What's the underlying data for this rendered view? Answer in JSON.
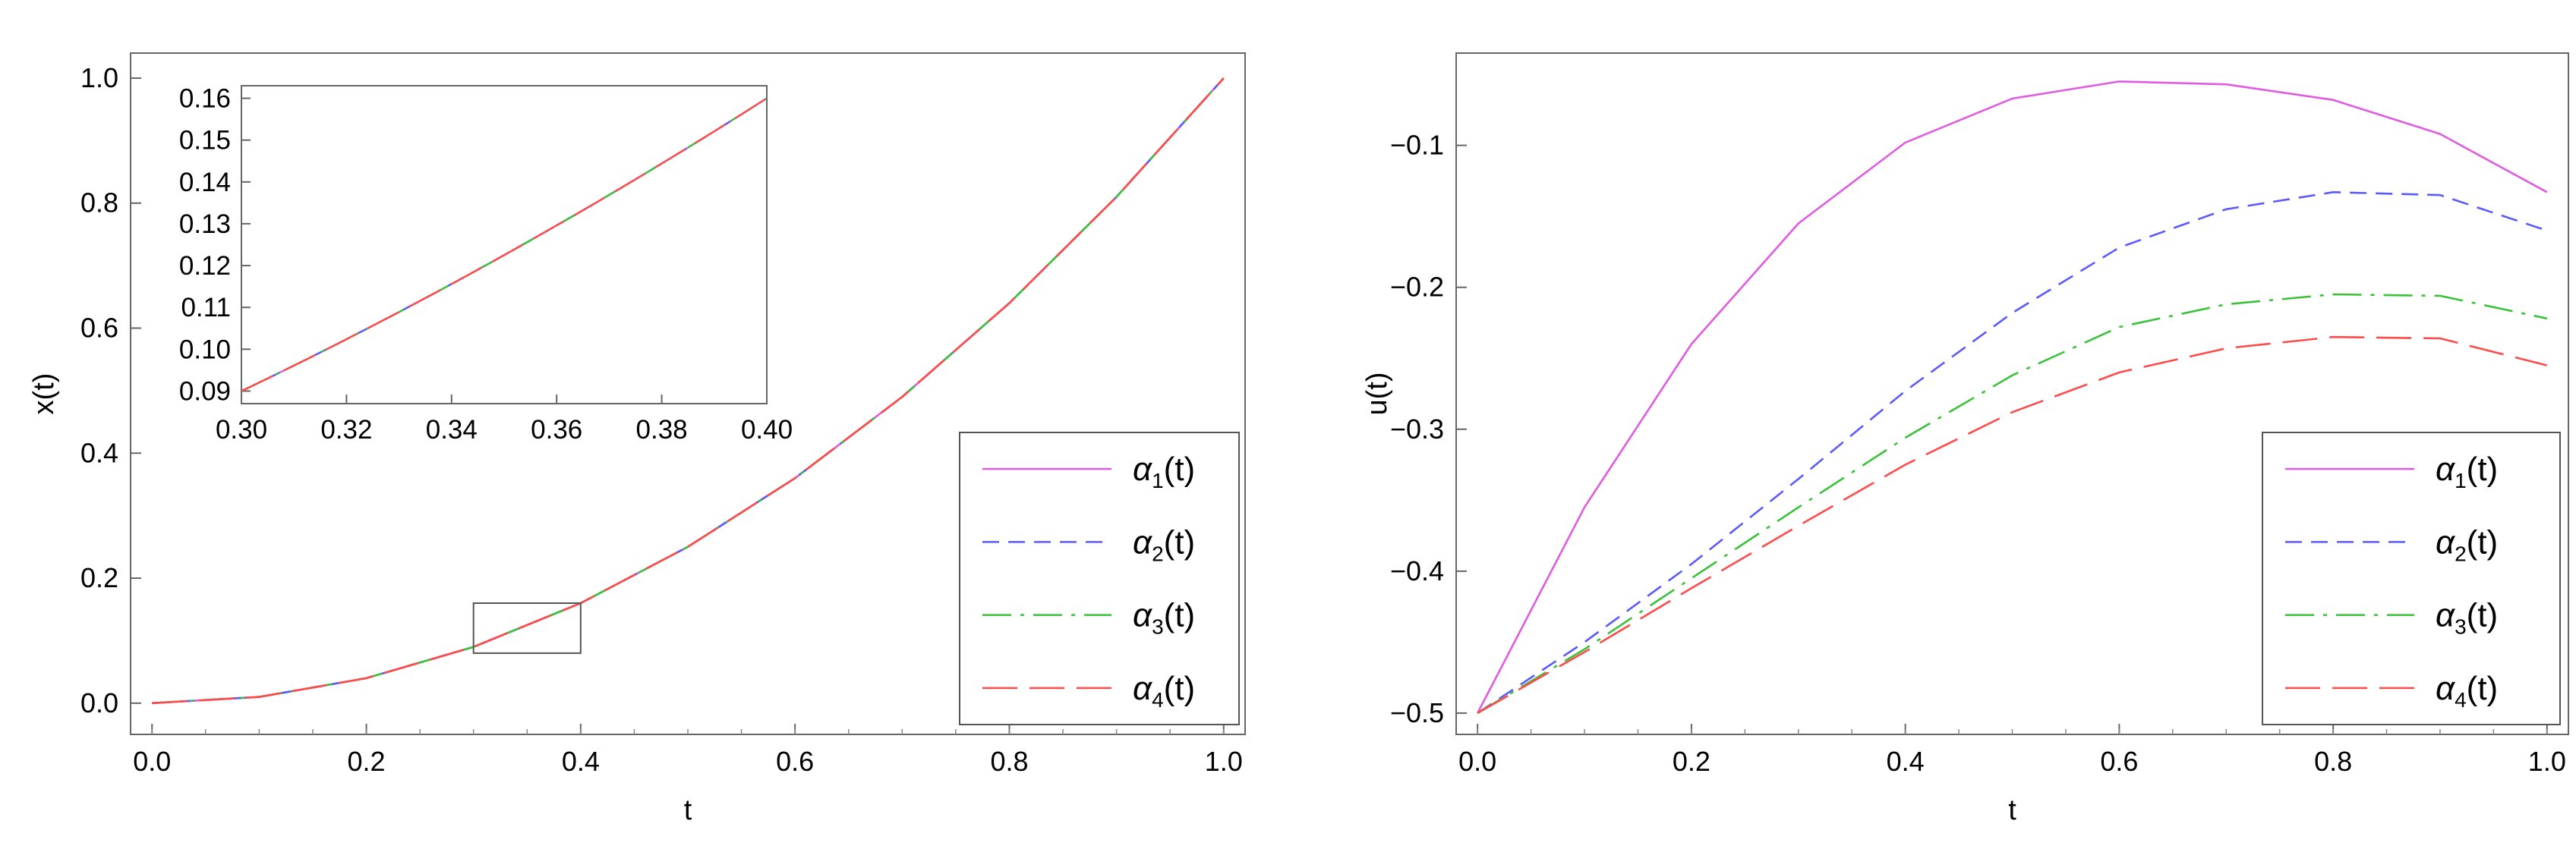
{
  "chart_data": [
    {
      "type": "line",
      "xlabel": "t",
      "ylabel": "x(t)",
      "xlim": [
        -0.02,
        1.02
      ],
      "ylim": [
        -0.05,
        1.04
      ],
      "xticks": [
        "0.0",
        "0.2",
        "0.4",
        "0.6",
        "0.8",
        "1.0"
      ],
      "yticks": [
        "0.0",
        "0.2",
        "0.4",
        "0.6",
        "0.8",
        "1.0"
      ],
      "grid": false,
      "legend": {
        "placement": "bottom-right"
      },
      "x": [
        0,
        0.1,
        0.2,
        0.3,
        0.4,
        0.5,
        0.6,
        0.7,
        0.8,
        0.9,
        1.0
      ],
      "series": [
        {
          "name": "α1(t)",
          "sub": "1",
          "color": "#e05be0",
          "dash": "solid",
          "values": [
            0,
            0.01,
            0.04,
            0.09,
            0.16,
            0.25,
            0.36,
            0.49,
            0.64,
            0.81,
            1.0
          ]
        },
        {
          "name": "α2(t)",
          "sub": "2",
          "color": "#5a5aff",
          "dash": "dashed",
          "values": [
            0,
            0.01,
            0.04,
            0.09,
            0.16,
            0.25,
            0.36,
            0.49,
            0.64,
            0.81,
            1.0
          ]
        },
        {
          "name": "α3(t)",
          "sub": "3",
          "color": "#39c239",
          "dash": "dashdot",
          "values": [
            0,
            0.01,
            0.04,
            0.09,
            0.16,
            0.25,
            0.36,
            0.49,
            0.64,
            0.81,
            1.0
          ]
        },
        {
          "name": "α4(t)",
          "sub": "4",
          "color": "#ff4a4a",
          "dash": "longdash",
          "values": [
            0,
            0.01,
            0.04,
            0.09,
            0.16,
            0.25,
            0.36,
            0.49,
            0.64,
            0.81,
            1.0
          ]
        }
      ],
      "inset": {
        "xlim": [
          0.3,
          0.4
        ],
        "ylim": [
          0.087,
          0.163
        ],
        "xticks": [
          "0.30",
          "0.32",
          "0.34",
          "0.36",
          "0.38",
          "0.40"
        ],
        "yticks": [
          "0.09",
          "0.10",
          "0.11",
          "0.12",
          "0.13",
          "0.14",
          "0.15",
          "0.16"
        ],
        "placement": "top-left",
        "zoom_box": {
          "x": [
            0.3,
            0.4
          ],
          "y": [
            0.08,
            0.16
          ]
        }
      }
    },
    {
      "type": "line",
      "xlabel": "t",
      "ylabel": "u(t)",
      "xlim": [
        -0.02,
        1.02
      ],
      "ylim": [
        -0.515,
        -0.035
      ],
      "xticks": [
        "0.0",
        "0.2",
        "0.4",
        "0.6",
        "0.8",
        "1.0"
      ],
      "yticks": [
        "-0.5",
        "-0.4",
        "-0.3",
        "-0.2",
        "-0.1"
      ],
      "grid": false,
      "legend": {
        "placement": "bottom-right"
      },
      "x": [
        0,
        0.1,
        0.2,
        0.3,
        0.4,
        0.5,
        0.6,
        0.7,
        0.8,
        0.9,
        1.0
      ],
      "series": [
        {
          "name": "α1(t)",
          "sub": "1",
          "color": "#e05be0",
          "dash": "solid",
          "values": [
            -0.5,
            -0.355,
            -0.24,
            -0.155,
            -0.098,
            -0.067,
            -0.055,
            -0.057,
            -0.068,
            -0.092,
            -0.133
          ]
        },
        {
          "name": "α2(t)",
          "sub": "2",
          "color": "#5a5aff",
          "dash": "dashed",
          "values": [
            -0.5,
            -0.45,
            -0.395,
            -0.335,
            -0.273,
            -0.218,
            -0.172,
            -0.145,
            -0.133,
            -0.135,
            -0.16
          ]
        },
        {
          "name": "α3(t)",
          "sub": "3",
          "color": "#39c239",
          "dash": "dashdot",
          "values": [
            -0.5,
            -0.455,
            -0.405,
            -0.355,
            -0.306,
            -0.262,
            -0.228,
            -0.212,
            -0.205,
            -0.206,
            -0.222
          ]
        },
        {
          "name": "α4(t)",
          "sub": "4",
          "color": "#ff4a4a",
          "dash": "longdash",
          "values": [
            -0.5,
            -0.457,
            -0.412,
            -0.368,
            -0.325,
            -0.288,
            -0.26,
            -0.243,
            -0.235,
            -0.236,
            -0.255
          ]
        }
      ]
    }
  ]
}
